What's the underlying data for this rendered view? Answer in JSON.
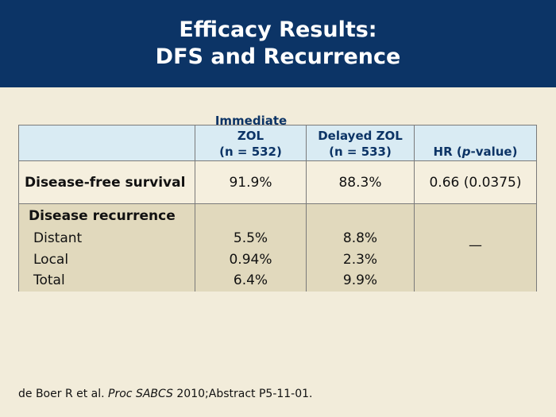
{
  "title": {
    "line1": "Efficacy Results:",
    "line2": "DFS and Recurrence"
  },
  "table": {
    "headers": {
      "col1_top": "Immediate",
      "col1_mid": "ZOL",
      "col1_n": "(n = 532)",
      "col2_mid": "Delayed ZOL",
      "col2_n": "(n = 533)",
      "col3_pre": "HR (",
      "col3_italic": "p",
      "col3_post": "-value)"
    },
    "dfs": {
      "label": "Disease-free survival",
      "immediate": "91.9%",
      "delayed": "88.3%",
      "hr": "0.66 (0.0375)"
    },
    "recurrence": {
      "label": "Disease recurrence",
      "rows": [
        {
          "label": "Distant",
          "immediate": "5.5%",
          "delayed": "8.8%"
        },
        {
          "label": "Local",
          "immediate": "0.94%",
          "delayed": "2.3%"
        },
        {
          "label": "Total",
          "immediate": "6.4%",
          "delayed": "9.9%"
        }
      ],
      "hr": "—"
    }
  },
  "footer": {
    "pre": "de Boer R et al. ",
    "italic": "Proc SABCS",
    "post": " 2010;Abstract P5-11-01."
  }
}
